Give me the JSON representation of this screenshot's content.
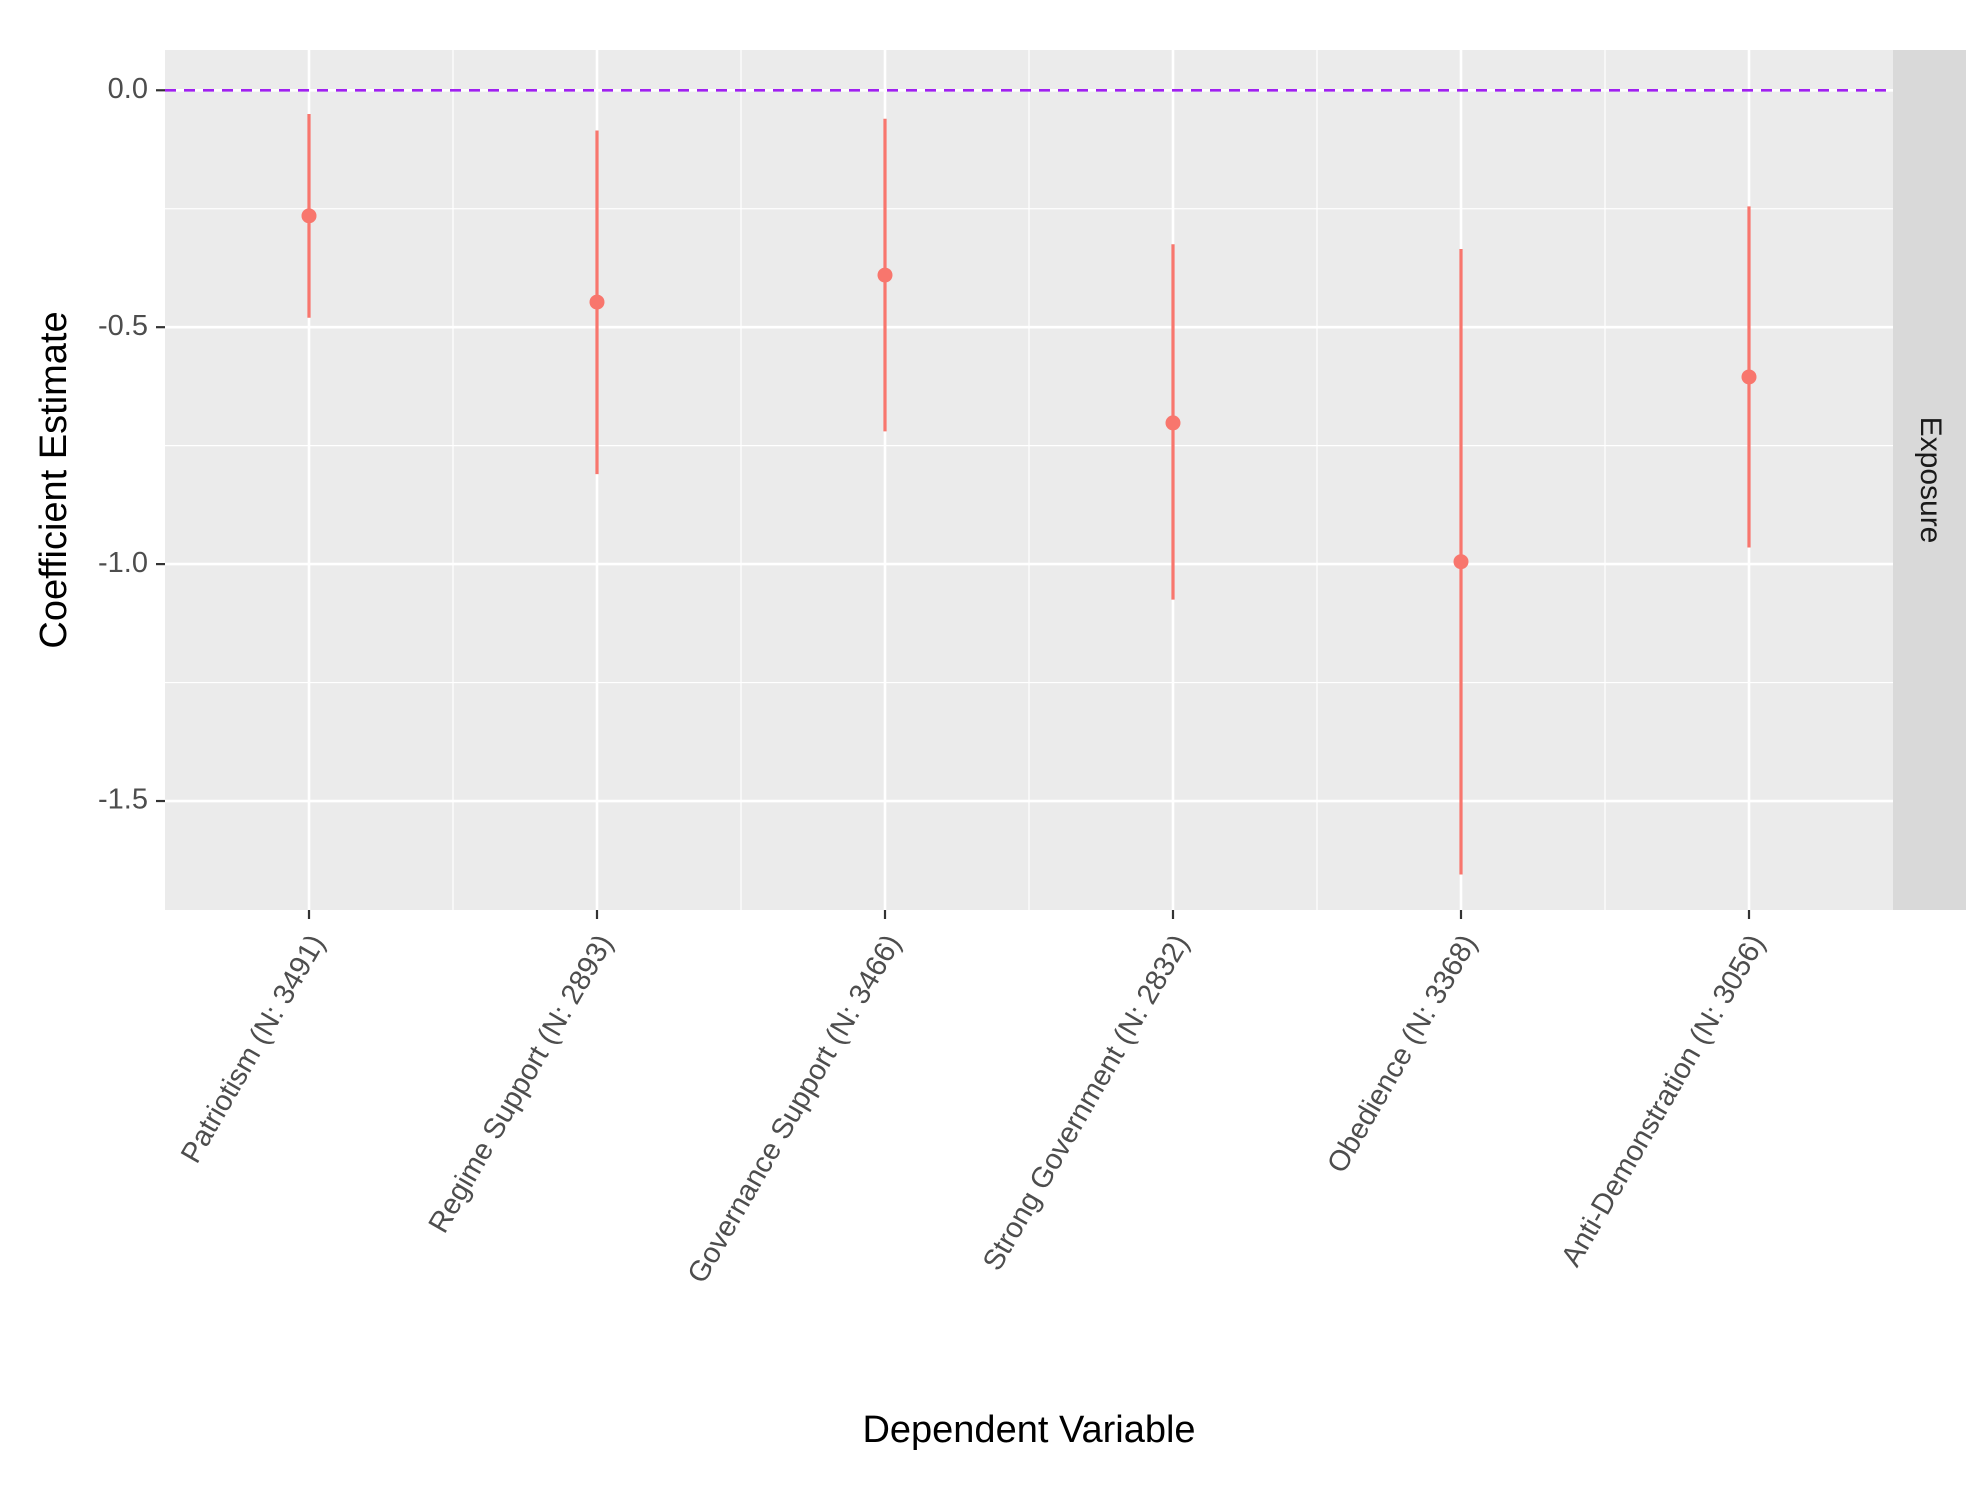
{
  "chart_data": {
    "type": "scatter",
    "subtype": "coefficient-plot-with-error-bars",
    "xlabel": "Dependent Variable",
    "ylabel": "Coefficient Estimate",
    "facet_label": "Exposure",
    "categories": [
      "Patriotism (N: 3491)",
      "Regime Support (N: 2893)",
      "Governance Support (N: 3466)",
      "Strong Government (N: 2832)",
      "Obedience (N: 3368)",
      "Anti-Demonstration (N: 3056)"
    ],
    "series": [
      {
        "estimate": [
          -0.265,
          -0.447,
          -0.39,
          -0.702,
          -0.995,
          -0.605
        ],
        "lower": [
          -0.48,
          -0.81,
          -0.72,
          -1.075,
          -1.655,
          -0.965
        ],
        "upper": [
          -0.05,
          -0.085,
          -0.06,
          -0.325,
          -0.335,
          -0.245
        ]
      }
    ],
    "reference_line": {
      "y": 0.0,
      "style": "dashed"
    },
    "yticks": [
      "0.0",
      "-0.5",
      "-1.0",
      "-1.5"
    ],
    "ytick_values": [
      0.0,
      -0.5,
      -1.0,
      -1.5
    ],
    "ylim": [
      -1.73,
      0.085
    ],
    "grid": true,
    "legend": "none",
    "colors": {
      "point": "#F8766D",
      "reference_line": "#A020F0",
      "panel_background": "#EBEBEB",
      "strip_background": "#D9D9D9",
      "grid": "#FFFFFF"
    }
  }
}
